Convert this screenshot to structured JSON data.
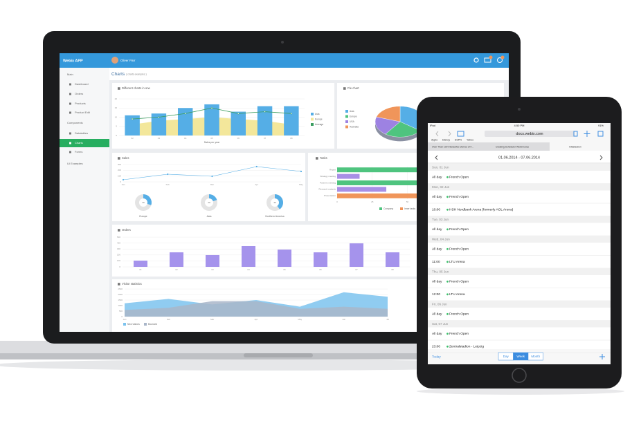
{
  "laptop": {
    "app_title": "Webix APP",
    "user": "Oliver Parr",
    "sidebar": [
      "Main",
      "Dashboard",
      "Orders",
      "Products",
      "Product Edit",
      "Components",
      "Datatables",
      "Charts",
      "Forms",
      "UI Examples"
    ],
    "page_title": "Charts",
    "page_subtitle": "( charts examples )",
    "charts": [
      {
        "type": "combo",
        "title": "Different charts in one",
        "categories": [
          "02",
          "03",
          "04",
          "05",
          "06",
          "07",
          "08"
        ],
        "xlabel": "Sales per year",
        "ylim": [
          0,
          20
        ],
        "yticks": [
          0,
          5,
          10,
          15,
          20
        ],
        "series": [
          {
            "name": "Asia",
            "kind": "bar",
            "color": "#55aee6",
            "values": [
              11,
              12,
              15,
              17,
              13,
              16,
              16
            ]
          },
          {
            "name": "Europe",
            "kind": "area",
            "color": "#f3e79b",
            "values": [
              6,
              8,
              9,
              10,
              9,
              8,
              6
            ]
          },
          {
            "name": "Average",
            "kind": "line",
            "color": "#3b9d60",
            "values": [
              9,
              10,
              12,
              15,
              12,
              13,
              12
            ]
          }
        ]
      },
      {
        "type": "pie",
        "title": "Pie chart",
        "categories": [
          "Asia",
          "Europe",
          "USA",
          "Australia"
        ],
        "values": [
          35,
          25,
          20,
          20
        ],
        "colors": [
          "#55aee6",
          "#4fc47f",
          "#9d82e2",
          "#f0955a"
        ]
      },
      {
        "type": "line",
        "title": "Sales",
        "categories": [
          "Jan",
          "Feb",
          "Mar",
          "Apr",
          "May"
        ],
        "values": [
          36,
          132,
          96,
          264,
          180
        ],
        "color": "#55aee6",
        "ylim": [
          0,
          300
        ],
        "yticks": [
          0,
          100,
          200,
          300
        ],
        "donuts": [
          {
            "label": "Europe",
            "value": 30
          },
          {
            "label": "Asia",
            "value": 20
          },
          {
            "label": "Northern America",
            "value": 40
          }
        ]
      },
      {
        "type": "hbar",
        "title": "Tasks",
        "categories": [
          "Report",
          "Strategy meeting",
          "Partners meeting",
          "Research analysis",
          "Presentation"
        ],
        "values": [
          100,
          16,
          100,
          35,
          75
        ],
        "colors": [
          "#4fc47f",
          "#a88fe6",
          "#4fc47f",
          "#a88fe6",
          "#f0955a"
        ],
        "xlim": [
          0,
          100
        ],
        "xticks": [
          0,
          25,
          50
        ],
        "legend": [
          {
            "name": "Company",
            "color": "#4fc47f"
          },
          {
            "name": "Inner tasks",
            "color": "#f0955a"
          }
        ]
      },
      {
        "type": "bar",
        "title": "Orders",
        "categories": [
          "01",
          "02",
          "03",
          "04",
          "05",
          "06",
          "07",
          "08"
        ],
        "values": [
          105,
          244,
          198,
          349,
          291,
          244,
          395,
          244
        ],
        "color": "#a593ec",
        "ylim": [
          0,
          500
        ],
        "yticks": [
          0,
          100,
          200,
          300,
          400,
          500
        ]
      },
      {
        "type": "area",
        "title": "Visitor statistics",
        "categories": [
          "Jan",
          "Feb",
          "Mar",
          "Apr",
          "May",
          "Jun",
          "Jul"
        ],
        "ylim": [
          0,
          2500
        ],
        "yticks": [
          0,
          500,
          1000,
          1500,
          2000,
          2500
        ],
        "series": [
          {
            "name": "New visitors",
            "color": "#7cc3ee",
            "values": [
              1200,
              1600,
              1100,
              1500,
              900,
              2200,
              1800
            ]
          },
          {
            "name": "Bounced",
            "color": "#a9b6c9",
            "values": [
              600,
              800,
              1400,
              1400,
              700,
              900,
              700
            ]
          }
        ]
      }
    ]
  },
  "tablet": {
    "status": {
      "device": "iPad",
      "time": "4:50 PM",
      "battery": "91%"
    },
    "url": "docs.webix.com",
    "bookmarks": [
      "Apple",
      "Disney",
      "ESPN",
      "Yahoo"
    ],
    "tabs": [
      "Over Than 100 Interactive Demos of F...",
      "Creating Scheduler Webix Docs",
      "Initialization"
    ],
    "range": "01.06.2014 - 07.06.2014",
    "days": [
      {
        "date": "Sun, 01 Jun",
        "events": [
          {
            "time": "All day",
            "title": "French Open"
          }
        ]
      },
      {
        "date": "Mon, 02 Jun",
        "events": [
          {
            "time": "All day",
            "title": "French Open"
          },
          {
            "time": "10:00",
            "title": "HSH Nordbank Arena (formerly AOL Arena)"
          }
        ]
      },
      {
        "date": "Tue, 03 Jun",
        "events": [
          {
            "time": "All day",
            "title": "French Open"
          }
        ]
      },
      {
        "date": "Wed, 04 Jun",
        "events": [
          {
            "time": "All day",
            "title": "French Open"
          },
          {
            "time": "11:00",
            "title": "LTU Arena"
          }
        ]
      },
      {
        "date": "Thu, 05 Jun",
        "events": [
          {
            "time": "All day",
            "title": "French Open"
          },
          {
            "time": "12:00",
            "title": "LTU Arena"
          }
        ]
      },
      {
        "date": "Fri, 06 Jun",
        "events": [
          {
            "time": "All day",
            "title": "French Open"
          }
        ]
      },
      {
        "date": "Sat, 07 Jun",
        "events": [
          {
            "time": "All day",
            "title": "French Open"
          },
          {
            "time": "23:00",
            "title": "Zentralstadion - Leipzig"
          }
        ]
      }
    ],
    "today": "Today",
    "views": [
      "Day",
      "Week",
      "Month"
    ]
  }
}
